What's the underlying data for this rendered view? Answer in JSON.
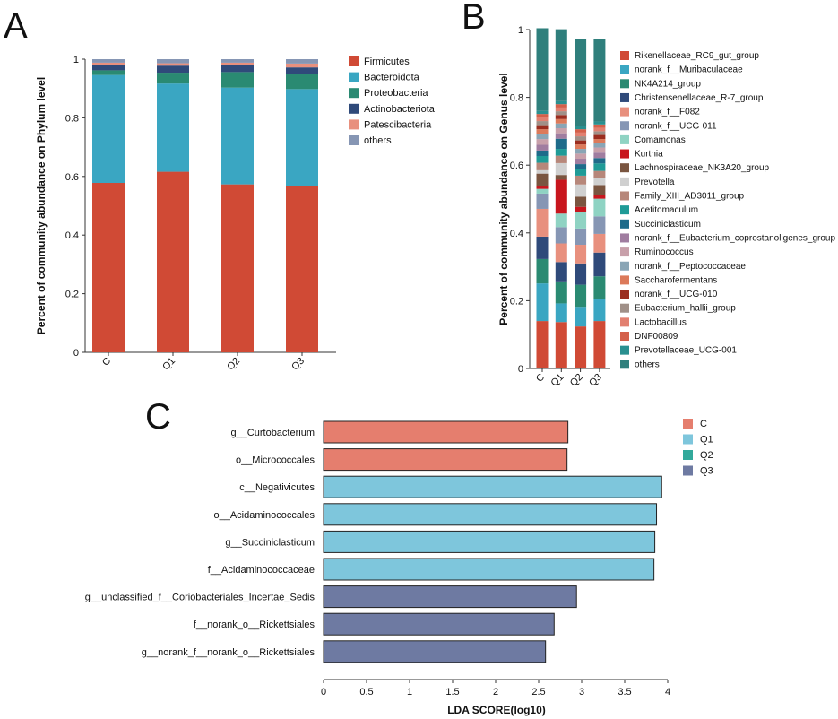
{
  "panel_labels": [
    "A",
    "B",
    "C"
  ],
  "chart_data": [
    {
      "panel": "A",
      "type": "bar",
      "stacked": true,
      "ylabel": "Percent of community abundance on Phylum level",
      "xlabel": "",
      "ylim": [
        0,
        1
      ],
      "y_ticks": [
        "0",
        "0.2",
        "0.4",
        "0.6",
        "0.8",
        "1"
      ],
      "categories": [
        "C",
        "Q1",
        "Q2",
        "Q3"
      ],
      "series": [
        {
          "name": "Firmicutes",
          "color": "#d04a35",
          "values": [
            0.578,
            0.616,
            0.573,
            0.568
          ]
        },
        {
          "name": "Bacteroidota",
          "color": "#3aa6c2",
          "values": [
            0.368,
            0.301,
            0.33,
            0.33
          ]
        },
        {
          "name": "Proteobacteria",
          "color": "#2a8a72",
          "values": [
            0.016,
            0.037,
            0.053,
            0.051
          ]
        },
        {
          "name": "Actinobacteriota",
          "color": "#2f4a7a",
          "values": [
            0.018,
            0.024,
            0.024,
            0.023
          ]
        },
        {
          "name": "Patescibacteria",
          "color": "#e8907e",
          "values": [
            0.008,
            0.008,
            0.008,
            0.013
          ]
        },
        {
          "name": "others",
          "color": "#8696b4",
          "values": [
            0.012,
            0.014,
            0.012,
            0.015
          ]
        }
      ],
      "legend_position": "right"
    },
    {
      "panel": "B",
      "type": "bar",
      "stacked": true,
      "ylabel": "Percent of community abundance on Genus level",
      "xlabel": "",
      "ylim": [
        0,
        1
      ],
      "y_ticks": [
        "0",
        "0.2",
        "0.4",
        "0.6",
        "0.8",
        "1"
      ],
      "categories": [
        "C",
        "Q1",
        "Q2",
        "Q3"
      ],
      "series": [
        {
          "name": "Rikenellaceae_RC9_gut_group",
          "color": "#d04a35",
          "values": [
            0.14,
            0.137,
            0.124,
            0.14
          ]
        },
        {
          "name": "norank_f__Muribaculaceae",
          "color": "#3aa6c2",
          "values": [
            0.111,
            0.055,
            0.058,
            0.065
          ]
        },
        {
          "name": "NK4A214_group",
          "color": "#2a8a72",
          "values": [
            0.072,
            0.065,
            0.065,
            0.067
          ]
        },
        {
          "name": "Christensenellaceae_R-7_group",
          "color": "#2f4a7a",
          "values": [
            0.066,
            0.057,
            0.063,
            0.07
          ]
        },
        {
          "name": "norank_f__F082",
          "color": "#e8907e",
          "values": [
            0.082,
            0.055,
            0.055,
            0.055
          ]
        },
        {
          "name": "norank_f__UCG-011",
          "color": "#8696b4",
          "values": [
            0.045,
            0.048,
            0.048,
            0.052
          ]
        },
        {
          "name": "Comamonas",
          "color": "#8fd3c3",
          "values": [
            0.014,
            0.04,
            0.05,
            0.052
          ]
        },
        {
          "name": "Kurthia",
          "color": "#c8161d",
          "values": [
            0.007,
            0.1,
            0.014,
            0.011
          ]
        },
        {
          "name": "Lachnospiraceae_NK3A20_group",
          "color": "#7a5540",
          "values": [
            0.038,
            0.014,
            0.03,
            0.029
          ]
        },
        {
          "name": "Prevotella",
          "color": "#d0d0d0",
          "values": [
            0.01,
            0.035,
            0.036,
            0.022
          ]
        },
        {
          "name": "Family_XIII_AD3011_group",
          "color": "#b7877a",
          "values": [
            0.022,
            0.022,
            0.026,
            0.02
          ]
        },
        {
          "name": "Acetitomaculum",
          "color": "#1f9b97",
          "values": [
            0.02,
            0.02,
            0.02,
            0.022
          ]
        },
        {
          "name": "Succiniclasticum",
          "color": "#1e6b8a",
          "values": [
            0.016,
            0.03,
            0.014,
            0.016
          ]
        },
        {
          "name": "norank_f__Eubacterium_coprostanoligenes_group",
          "color": "#a07da0",
          "values": [
            0.017,
            0.016,
            0.016,
            0.016
          ]
        },
        {
          "name": "Ruminococcus",
          "color": "#c8a0aa",
          "values": [
            0.017,
            0.015,
            0.015,
            0.015
          ]
        },
        {
          "name": "norank_f__Peptococcaceae",
          "color": "#8aa5b5",
          "values": [
            0.015,
            0.014,
            0.014,
            0.013
          ]
        },
        {
          "name": "Saccharofermentans",
          "color": "#dc7a5a",
          "values": [
            0.014,
            0.013,
            0.013,
            0.012
          ]
        },
        {
          "name": "norank_f__UCG-010",
          "color": "#9b2d1f",
          "values": [
            0.012,
            0.012,
            0.012,
            0.012
          ]
        },
        {
          "name": "Eubacterium_hallii_group",
          "color": "#a09088",
          "values": [
            0.012,
            0.011,
            0.012,
            0.011
          ]
        },
        {
          "name": "Lactobacillus",
          "color": "#e28070",
          "values": [
            0.011,
            0.011,
            0.011,
            0.01
          ]
        },
        {
          "name": "DNF00809",
          "color": "#d4604a",
          "values": [
            0.01,
            0.01,
            0.01,
            0.01
          ]
        },
        {
          "name": "Prevotellaceae_UCG-001",
          "color": "#2a9090",
          "values": [
            0.009,
            0.009,
            0.009,
            0.009
          ]
        },
        {
          "name": "others",
          "color": "#2f7f7c",
          "values": [
            0.244,
            0.212,
            0.256,
            0.244
          ]
        }
      ],
      "legend_position": "right"
    },
    {
      "panel": "C",
      "type": "bar",
      "orientation": "horizontal",
      "xlabel": "LDA SCORE(log10)",
      "ylabel": "",
      "xlim": [
        0,
        4
      ],
      "x_ticks": [
        "0",
        "0.5",
        "1",
        "1.5",
        "2",
        "2.5",
        "3",
        "3.5",
        "4"
      ],
      "categories": [
        "g__Curtobacterium",
        "o__Micrococcales",
        "c__Negativicutes",
        "o__Acidaminococcales",
        "g__Succiniclasticum",
        "f__Acidaminococcaceae",
        "g__unclassified_f__Coriobacteriales_Incertae_Sedis",
        "f__norank_o__Rickettsiales",
        "g__norank_f__norank_o__Rickettsiales"
      ],
      "values": [
        2.84,
        2.83,
        3.93,
        3.87,
        3.85,
        3.84,
        2.94,
        2.68,
        2.58
      ],
      "groups": [
        "C",
        "C",
        "Q1",
        "Q1",
        "Q1",
        "Q1",
        "Q3",
        "Q3",
        "Q3"
      ],
      "legend": [
        {
          "name": "C",
          "color": "#e57e6e"
        },
        {
          "name": "Q1",
          "color": "#7ec6dc"
        },
        {
          "name": "Q2",
          "color": "#32a99b"
        },
        {
          "name": "Q3",
          "color": "#6e7aa2"
        }
      ],
      "legend_position": "top-right"
    }
  ]
}
